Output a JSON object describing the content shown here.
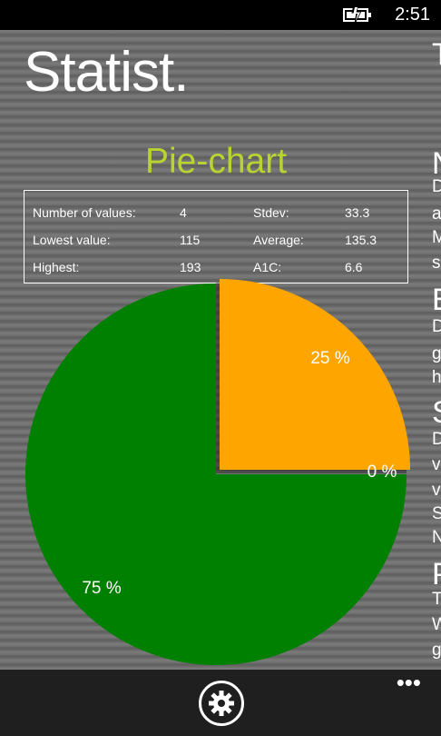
{
  "status_bar": {
    "time": "2:51",
    "battery_icon": "battery-charging-icon"
  },
  "app": {
    "title": "Statist."
  },
  "chart_title": "Pie-chart",
  "stats": {
    "number_of_values_label": "Number of values:",
    "number_of_values": "4",
    "lowest_label": "Lowest value:",
    "lowest": "115",
    "highest_label": "Highest:",
    "highest": "193",
    "stdev_label": "Stdev:",
    "stdev": "33.3",
    "average_label": "Average:",
    "average": "135.3",
    "a1c_label": "A1C:",
    "a1c": "6.6"
  },
  "chart_data": {
    "type": "pie",
    "title": "Pie-chart",
    "slices": [
      {
        "label": "25 %",
        "value": 25,
        "color": "#ffa500"
      },
      {
        "label": "0 %",
        "value": 0,
        "color": "#ffd700"
      },
      {
        "label": "75 %",
        "value": 75,
        "color": "#008000"
      }
    ]
  },
  "next_page_peek": {
    "header": "T",
    "lines": [
      {
        "text": "N",
        "kind": "heading"
      },
      {
        "text": "D",
        "kind": "text"
      },
      {
        "text": "a",
        "kind": "text"
      },
      {
        "text": "M",
        "kind": "text"
      },
      {
        "text": "s",
        "kind": "text"
      },
      {
        "text": "E",
        "kind": "heading"
      },
      {
        "text": "D",
        "kind": "text"
      },
      {
        "text": "g",
        "kind": "text"
      },
      {
        "text": "h",
        "kind": "text"
      },
      {
        "text": "S",
        "kind": "heading"
      },
      {
        "text": "D",
        "kind": "text"
      },
      {
        "text": "v",
        "kind": "text"
      },
      {
        "text": "v",
        "kind": "text"
      },
      {
        "text": "S",
        "kind": "text"
      },
      {
        "text": "N",
        "kind": "text"
      },
      {
        "text": "P",
        "kind": "heading"
      },
      {
        "text": "T",
        "kind": "text"
      },
      {
        "text": "W",
        "kind": "text"
      },
      {
        "text": "g",
        "kind": "text"
      }
    ]
  },
  "app_bar": {
    "settings_icon": "gear-icon",
    "more_label": "•••"
  }
}
